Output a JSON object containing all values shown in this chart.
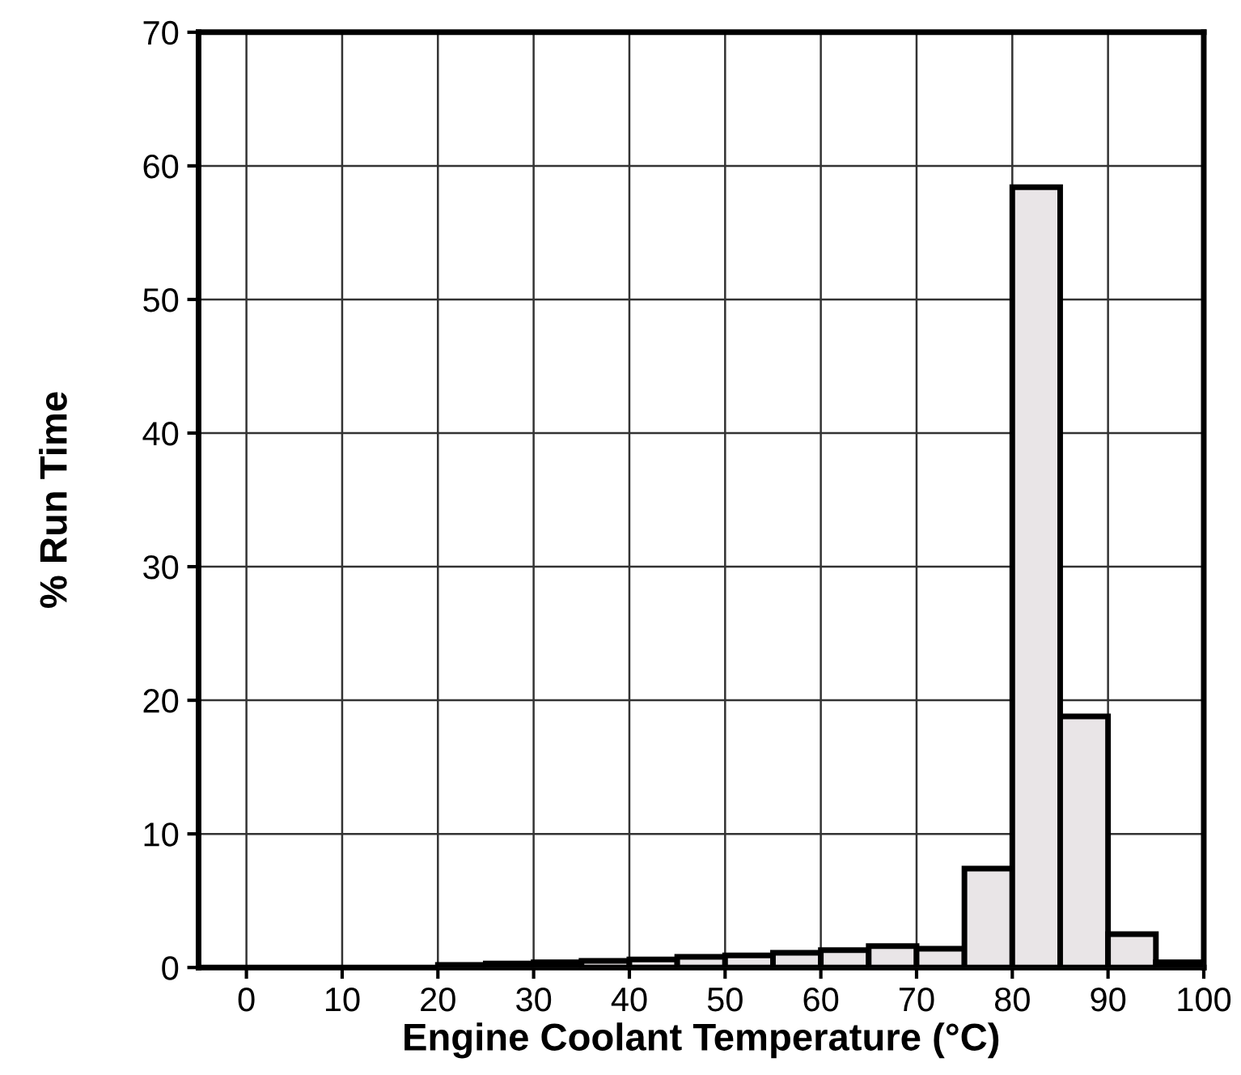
{
  "chart_data": {
    "type": "histogram",
    "xlabel": "Engine Coolant Temperature (°C)",
    "ylabel": "% Run Time",
    "bins": [
      20,
      25,
      30,
      35,
      40,
      45,
      50,
      55,
      60,
      65,
      70,
      75,
      80,
      85,
      90,
      95,
      100
    ],
    "values": [
      0.2,
      0.3,
      0.4,
      0.5,
      0.6,
      0.8,
      0.9,
      1.1,
      1.3,
      1.6,
      1.4,
      7.4,
      58.4,
      18.8,
      2.5,
      0.4
    ],
    "color": "#e9e5e7",
    "xlim": [
      -5,
      100
    ],
    "xticks": [
      0,
      10,
      20,
      30,
      40,
      50,
      60,
      70,
      80,
      90,
      100
    ],
    "ylim": [
      0,
      70
    ],
    "yticks": [
      0,
      10,
      20,
      30,
      40,
      50,
      60,
      70
    ],
    "grid": true
  }
}
